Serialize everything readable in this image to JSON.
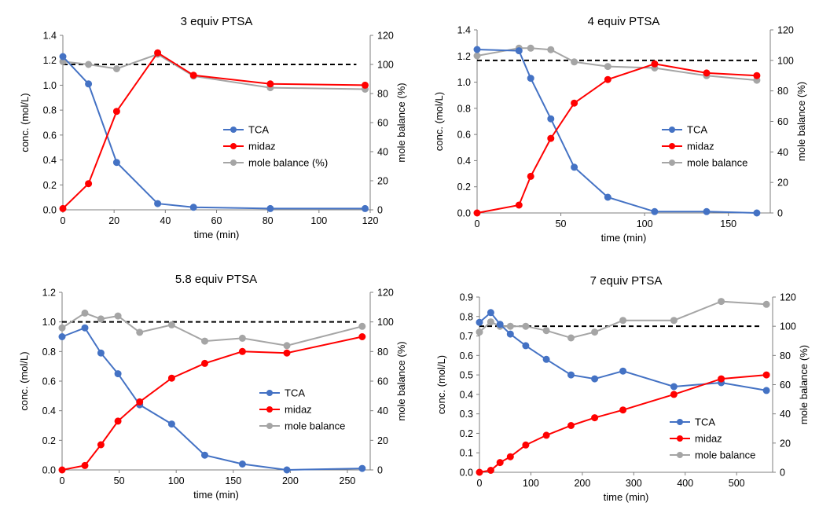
{
  "chart_data": [
    {
      "type": "line",
      "title": "3 equiv PTSA",
      "xlabel": "time (min)",
      "ylabel": "conc. (mol/L)",
      "y2label": "mole balance (%)",
      "xlim": [
        0,
        120
      ],
      "xticks": [
        0,
        20,
        40,
        60,
        80,
        100,
        120
      ],
      "ylim": [
        0,
        1.4
      ],
      "yticks": [
        0.0,
        0.2,
        0.4,
        0.6,
        0.8,
        1.0,
        1.2,
        1.4
      ],
      "ytick_labels": [
        "0.0",
        "0.2",
        "0.4",
        "0.6",
        "0.8",
        "1.0",
        "1.2",
        "1.4"
      ],
      "y2lim": [
        0,
        120
      ],
      "y2ticks": [
        0,
        20,
        40,
        60,
        80,
        100,
        120
      ],
      "reference_line": {
        "axis": "y2",
        "value": 100,
        "style": "dashed"
      },
      "grid": false,
      "legend_position": "center-right",
      "series": [
        {
          "name": "TCA",
          "axis": "y1",
          "color": "#4472C4",
          "x": [
            0,
            10,
            21,
            37,
            51,
            81,
            118
          ],
          "y": [
            1.23,
            1.01,
            0.38,
            0.05,
            0.02,
            0.01,
            0.01
          ]
        },
        {
          "name": "midaz",
          "axis": "y1",
          "color": "#FF0000",
          "x": [
            0,
            10,
            21,
            37,
            51,
            81,
            118
          ],
          "y": [
            0.01,
            0.21,
            0.79,
            1.26,
            1.08,
            1.01,
            1.0
          ]
        },
        {
          "name": "mole balance (%)",
          "axis": "y2",
          "color": "#A5A5A5",
          "x": [
            0,
            10,
            21,
            37,
            51,
            81,
            118
          ],
          "y": [
            102,
            100,
            97,
            107,
            92,
            84,
            83
          ]
        }
      ]
    },
    {
      "type": "line",
      "title": "4 equiv PTSA",
      "xlabel": "time (min)",
      "ylabel": "conc. (mol/L)",
      "y2label": "mole balance (%)",
      "xlim": [
        0,
        175
      ],
      "xticks": [
        0,
        50,
        100,
        150
      ],
      "ylim": [
        0,
        1.4
      ],
      "yticks": [
        0.0,
        0.2,
        0.4,
        0.6,
        0.8,
        1.0,
        1.2,
        1.4
      ],
      "ytick_labels": [
        "0.0",
        "0.2",
        "0.4",
        "0.6",
        "0.8",
        "1.0",
        "1.2",
        "1.4"
      ],
      "y2lim": [
        0,
        120
      ],
      "y2ticks": [
        0,
        20,
        40,
        60,
        80,
        100,
        120
      ],
      "reference_line": {
        "axis": "y2",
        "value": 100,
        "style": "dashed"
      },
      "grid": false,
      "legend_position": "center-right",
      "series": [
        {
          "name": "TCA",
          "axis": "y1",
          "color": "#4472C4",
          "x": [
            0,
            25,
            32,
            44,
            58,
            78,
            106,
            137,
            167
          ],
          "y": [
            1.25,
            1.24,
            1.03,
            0.72,
            0.35,
            0.12,
            0.01,
            0.01,
            0.0
          ]
        },
        {
          "name": "midaz",
          "axis": "y1",
          "color": "#FF0000",
          "x": [
            0,
            25,
            32,
            44,
            58,
            78,
            106,
            137,
            167
          ],
          "y": [
            0.0,
            0.06,
            0.28,
            0.57,
            0.84,
            1.02,
            1.14,
            1.07,
            1.05
          ]
        },
        {
          "name": "mole balance",
          "axis": "y2",
          "color": "#A5A5A5",
          "x": [
            0,
            25,
            32,
            44,
            58,
            78,
            106,
            137,
            167
          ],
          "y": [
            103,
            108,
            108,
            107,
            99,
            96,
            95,
            90,
            87
          ]
        }
      ]
    },
    {
      "type": "line",
      "title": "5.8 equiv PTSA",
      "xlabel": "time (min)",
      "ylabel": "conc. (mol/L)",
      "y2label": "mole balance (%)",
      "xlim": [
        0,
        270
      ],
      "xticks": [
        0,
        50,
        100,
        150,
        200,
        250
      ],
      "ylim": [
        0,
        1.2
      ],
      "yticks": [
        0.0,
        0.2,
        0.4,
        0.6,
        0.8,
        1.0,
        1.2
      ],
      "ytick_labels": [
        "0.0",
        "0.2",
        "0.4",
        "0.6",
        "0.8",
        "1.0",
        "1.2"
      ],
      "y2lim": [
        0,
        120
      ],
      "y2ticks": [
        0,
        20,
        40,
        60,
        80,
        100,
        120
      ],
      "reference_line": {
        "axis": "y2",
        "value": 100,
        "style": "dashed"
      },
      "grid": false,
      "legend_position": "center-right",
      "series": [
        {
          "name": "TCA",
          "axis": "y1",
          "color": "#4472C4",
          "x": [
            0,
            20,
            34,
            49,
            68,
            96,
            125,
            158,
            197,
            263
          ],
          "y": [
            0.9,
            0.96,
            0.79,
            0.65,
            0.44,
            0.31,
            0.1,
            0.04,
            0.0,
            0.01
          ]
        },
        {
          "name": "midaz",
          "axis": "y1",
          "color": "#FF0000",
          "x": [
            0,
            20,
            34,
            49,
            68,
            96,
            125,
            158,
            197,
            263
          ],
          "y": [
            0.0,
            0.03,
            0.17,
            0.33,
            0.46,
            0.62,
            0.72,
            0.8,
            0.79,
            0.9
          ]
        },
        {
          "name": "mole balance",
          "axis": "y2",
          "color": "#A5A5A5",
          "x": [
            0,
            20,
            34,
            49,
            68,
            96,
            125,
            158,
            197,
            263
          ],
          "y": [
            96,
            106,
            102,
            104,
            93,
            98,
            87,
            89,
            84,
            97
          ]
        }
      ]
    },
    {
      "type": "line",
      "title": "7 equiv PTSA",
      "xlabel": "time (min)",
      "ylabel": "conc. (mol/L)",
      "y2label": "mole balance (%)",
      "xlim": [
        0,
        570
      ],
      "xticks": [
        0,
        100,
        200,
        300,
        400,
        500
      ],
      "ylim": [
        0,
        0.9
      ],
      "yticks": [
        0.0,
        0.1,
        0.2,
        0.3,
        0.4,
        0.5,
        0.6,
        0.7,
        0.8,
        0.9
      ],
      "ytick_labels": [
        "0.0",
        "0.1",
        "0.2",
        "0.3",
        "0.4",
        "0.5",
        "0.6",
        "0.7",
        "0.8",
        "0.9"
      ],
      "y2lim": [
        0,
        120
      ],
      "y2ticks": [
        0,
        20,
        40,
        60,
        80,
        100,
        120
      ],
      "reference_line": {
        "axis": "y2",
        "value": 100,
        "style": "dashed"
      },
      "grid": false,
      "legend_position": "bottom-right",
      "series": [
        {
          "name": "TCA",
          "axis": "y1",
          "color": "#4472C4",
          "x": [
            0,
            22,
            40,
            60,
            90,
            130,
            178,
            224,
            279,
            378,
            470,
            558
          ],
          "y": [
            0.77,
            0.82,
            0.76,
            0.71,
            0.65,
            0.58,
            0.5,
            0.48,
            0.52,
            0.44,
            0.46,
            0.42
          ]
        },
        {
          "name": "midaz",
          "axis": "y1",
          "color": "#FF0000",
          "x": [
            0,
            22,
            40,
            60,
            90,
            130,
            178,
            224,
            279,
            378,
            470,
            558
          ],
          "y": [
            0.0,
            0.01,
            0.05,
            0.08,
            0.14,
            0.19,
            0.24,
            0.28,
            0.32,
            0.4,
            0.48,
            0.5
          ]
        },
        {
          "name": "mole balance",
          "axis": "y2",
          "color": "#A5A5A5",
          "x": [
            0,
            22,
            40,
            60,
            90,
            130,
            178,
            224,
            279,
            378,
            470,
            558
          ],
          "y": [
            96,
            103,
            100,
            100,
            100,
            97,
            92,
            96,
            104,
            104,
            117,
            115
          ]
        }
      ]
    }
  ]
}
